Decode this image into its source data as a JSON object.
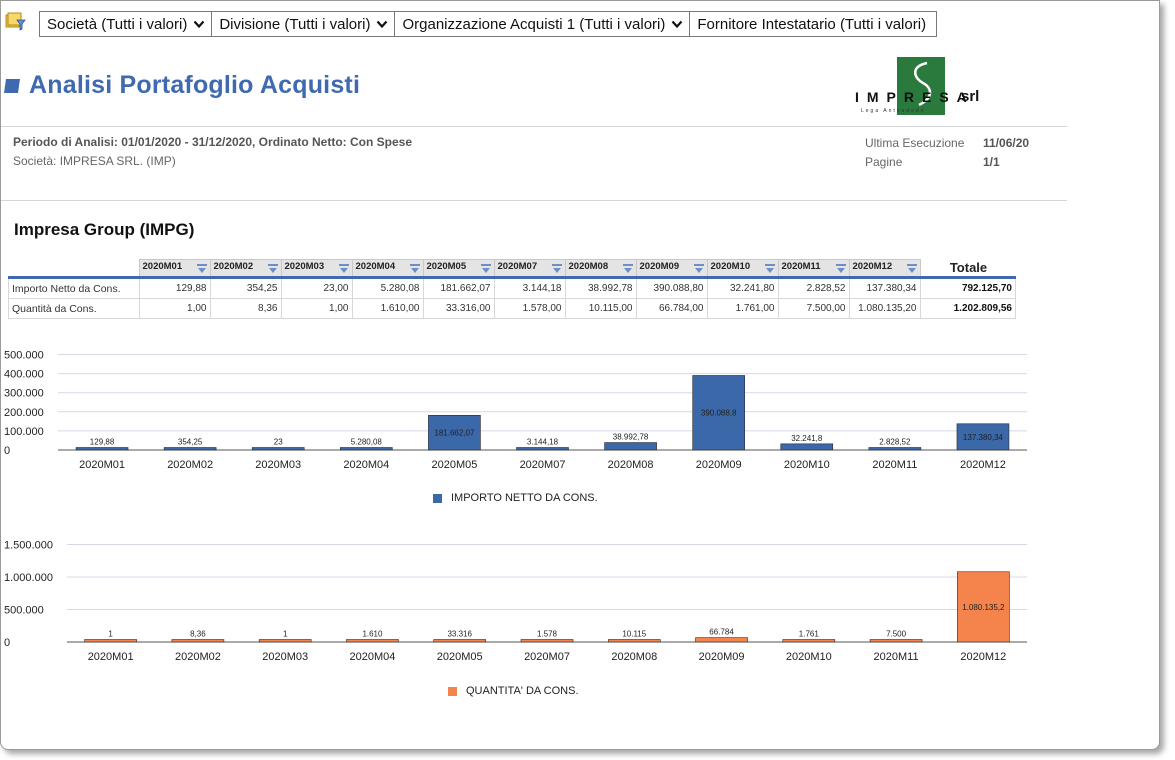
{
  "filters": [
    {
      "label": "Società (Tutti i valori)"
    },
    {
      "label": "Divisione (Tutti i valori)"
    },
    {
      "label": "Organizzazione Acquisti 1 (Tutti i valori)"
    },
    {
      "label": "Fornitore Intestatario (Tutti i valori)"
    }
  ],
  "header": {
    "title": "Analisi Portafoglio Acquisti",
    "period_line": "Periodo di Analisi: 01/01/2020 - 31/12/2020, Ordinato Netto: Con Spese",
    "company_line": "Società:  IMPRESA SRL. (IMP)",
    "last_run_label": "Ultima Esecuzione",
    "last_run_value": "11/06/20",
    "pages_label": "Pagine",
    "pages_value": "1/1",
    "logo_text": "IMPRESA",
    "logo_suffix": "srl",
    "logo_tagline": "Lega Anteadede"
  },
  "group_title": "Impresa Group (IMPG)",
  "table": {
    "columns": [
      "2020M01",
      "2020M02",
      "2020M03",
      "2020M04",
      "2020M05",
      "2020M07",
      "2020M08",
      "2020M09",
      "2020M10",
      "2020M11",
      "2020M12"
    ],
    "total_label": "Totale",
    "rows": [
      {
        "label": "Importo Netto da Cons.",
        "values": [
          "129,88",
          "354,25",
          "23,00",
          "5.280,08",
          "181.662,07",
          "3.144,18",
          "38.992,78",
          "390.088,80",
          "32.241,80",
          "2.828,52",
          "137.380,34"
        ],
        "total": "792.125,70"
      },
      {
        "label": "Quantità da Cons.",
        "values": [
          "1,00",
          "8,36",
          "1,00",
          "1.610,00",
          "33.316,00",
          "1.578,00",
          "10.115,00",
          "66.784,00",
          "1.761,00",
          "7.500,00",
          "1.080.135,20"
        ],
        "total": "1.202.809,56"
      }
    ]
  },
  "chart_data": [
    {
      "type": "bar",
      "categories": [
        "2020M01",
        "2020M02",
        "2020M03",
        "2020M04",
        "2020M05",
        "2020M07",
        "2020M08",
        "2020M09",
        "2020M10",
        "2020M11",
        "2020M12"
      ],
      "series": [
        {
          "name": "IMPORTO NETTO DA CONS.",
          "values": [
            129.88,
            354.25,
            23,
            5280.08,
            181662.07,
            3144.18,
            38992.78,
            390088.8,
            32241.8,
            2828.52,
            137380.34
          ],
          "color": "#3a68a8"
        }
      ],
      "data_labels": [
        "129,88",
        "354,25",
        "23",
        "5.280,08",
        "181.662,07",
        "3.144,18",
        "38.992,78",
        "390.088,8",
        "32.241,8",
        "2.828,52",
        "137.380,34"
      ],
      "y_ticks": [
        0,
        100000,
        200000,
        300000,
        400000,
        500000
      ],
      "y_tick_labels": [
        "0",
        "100.000",
        "200.000",
        "300.000",
        "400.000",
        "500.000"
      ],
      "ylim": [
        0,
        500000
      ],
      "legend": "bottom-center",
      "grid": true
    },
    {
      "type": "bar",
      "categories": [
        "2020M01",
        "2020M02",
        "2020M03",
        "2020M04",
        "2020M05",
        "2020M07",
        "2020M08",
        "2020M09",
        "2020M10",
        "2020M11",
        "2020M12"
      ],
      "series": [
        {
          "name": "QUANTITA' DA CONS.",
          "values": [
            1,
            8.36,
            1,
            1610,
            33316,
            1578,
            10115,
            66784,
            1761,
            7500,
            1080135.2
          ],
          "color": "#f4844c"
        }
      ],
      "data_labels": [
        "1",
        "8,36",
        "1",
        "1.610",
        "33.316",
        "1.578",
        "10.115",
        "66.784",
        "1.761",
        "7.500",
        "1.080.135,2"
      ],
      "y_ticks": [
        0,
        500000,
        1000000,
        1500000
      ],
      "y_tick_labels": [
        "0",
        "500.000",
        "1.000.000",
        "1.500.000"
      ],
      "ylim": [
        0,
        1500000
      ],
      "legend": "bottom-center",
      "grid": true
    }
  ]
}
